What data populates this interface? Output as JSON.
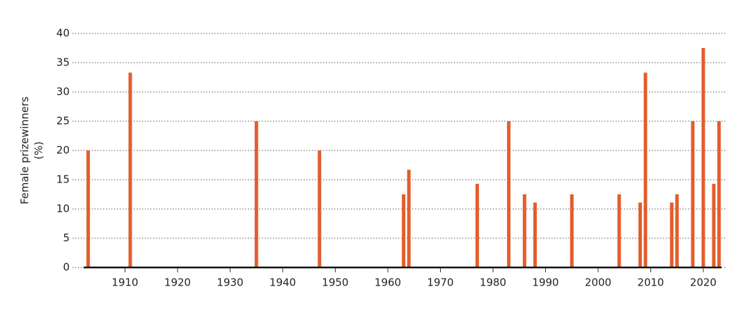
{
  "chart_data": {
    "type": "bar",
    "y_label": [
      "Female prizewinners",
      "(%)"
    ],
    "x": [
      1903,
      1911,
      1935,
      1947,
      1963,
      1964,
      1977,
      1983,
      1986,
      1988,
      1995,
      2004,
      2008,
      2009,
      2014,
      2015,
      2018,
      2020,
      2022,
      2023
    ],
    "values": [
      20,
      33.3,
      25,
      20,
      12.5,
      16.7,
      14.3,
      25,
      12.5,
      11.1,
      12.5,
      12.5,
      11.1,
      33.3,
      11.1,
      12.5,
      25,
      37.5,
      14.3,
      25
    ],
    "color": "#e35d2b",
    "xlim": [
      1900,
      2024.5
    ],
    "xticks": [
      1910,
      1920,
      1930,
      1940,
      1950,
      1960,
      1970,
      1980,
      1990,
      2000,
      2010,
      2020
    ],
    "ylim": [
      0,
      40
    ],
    "yticks": [
      0,
      5,
      10,
      15,
      20,
      25,
      30,
      35,
      40
    ],
    "grid": true
  }
}
